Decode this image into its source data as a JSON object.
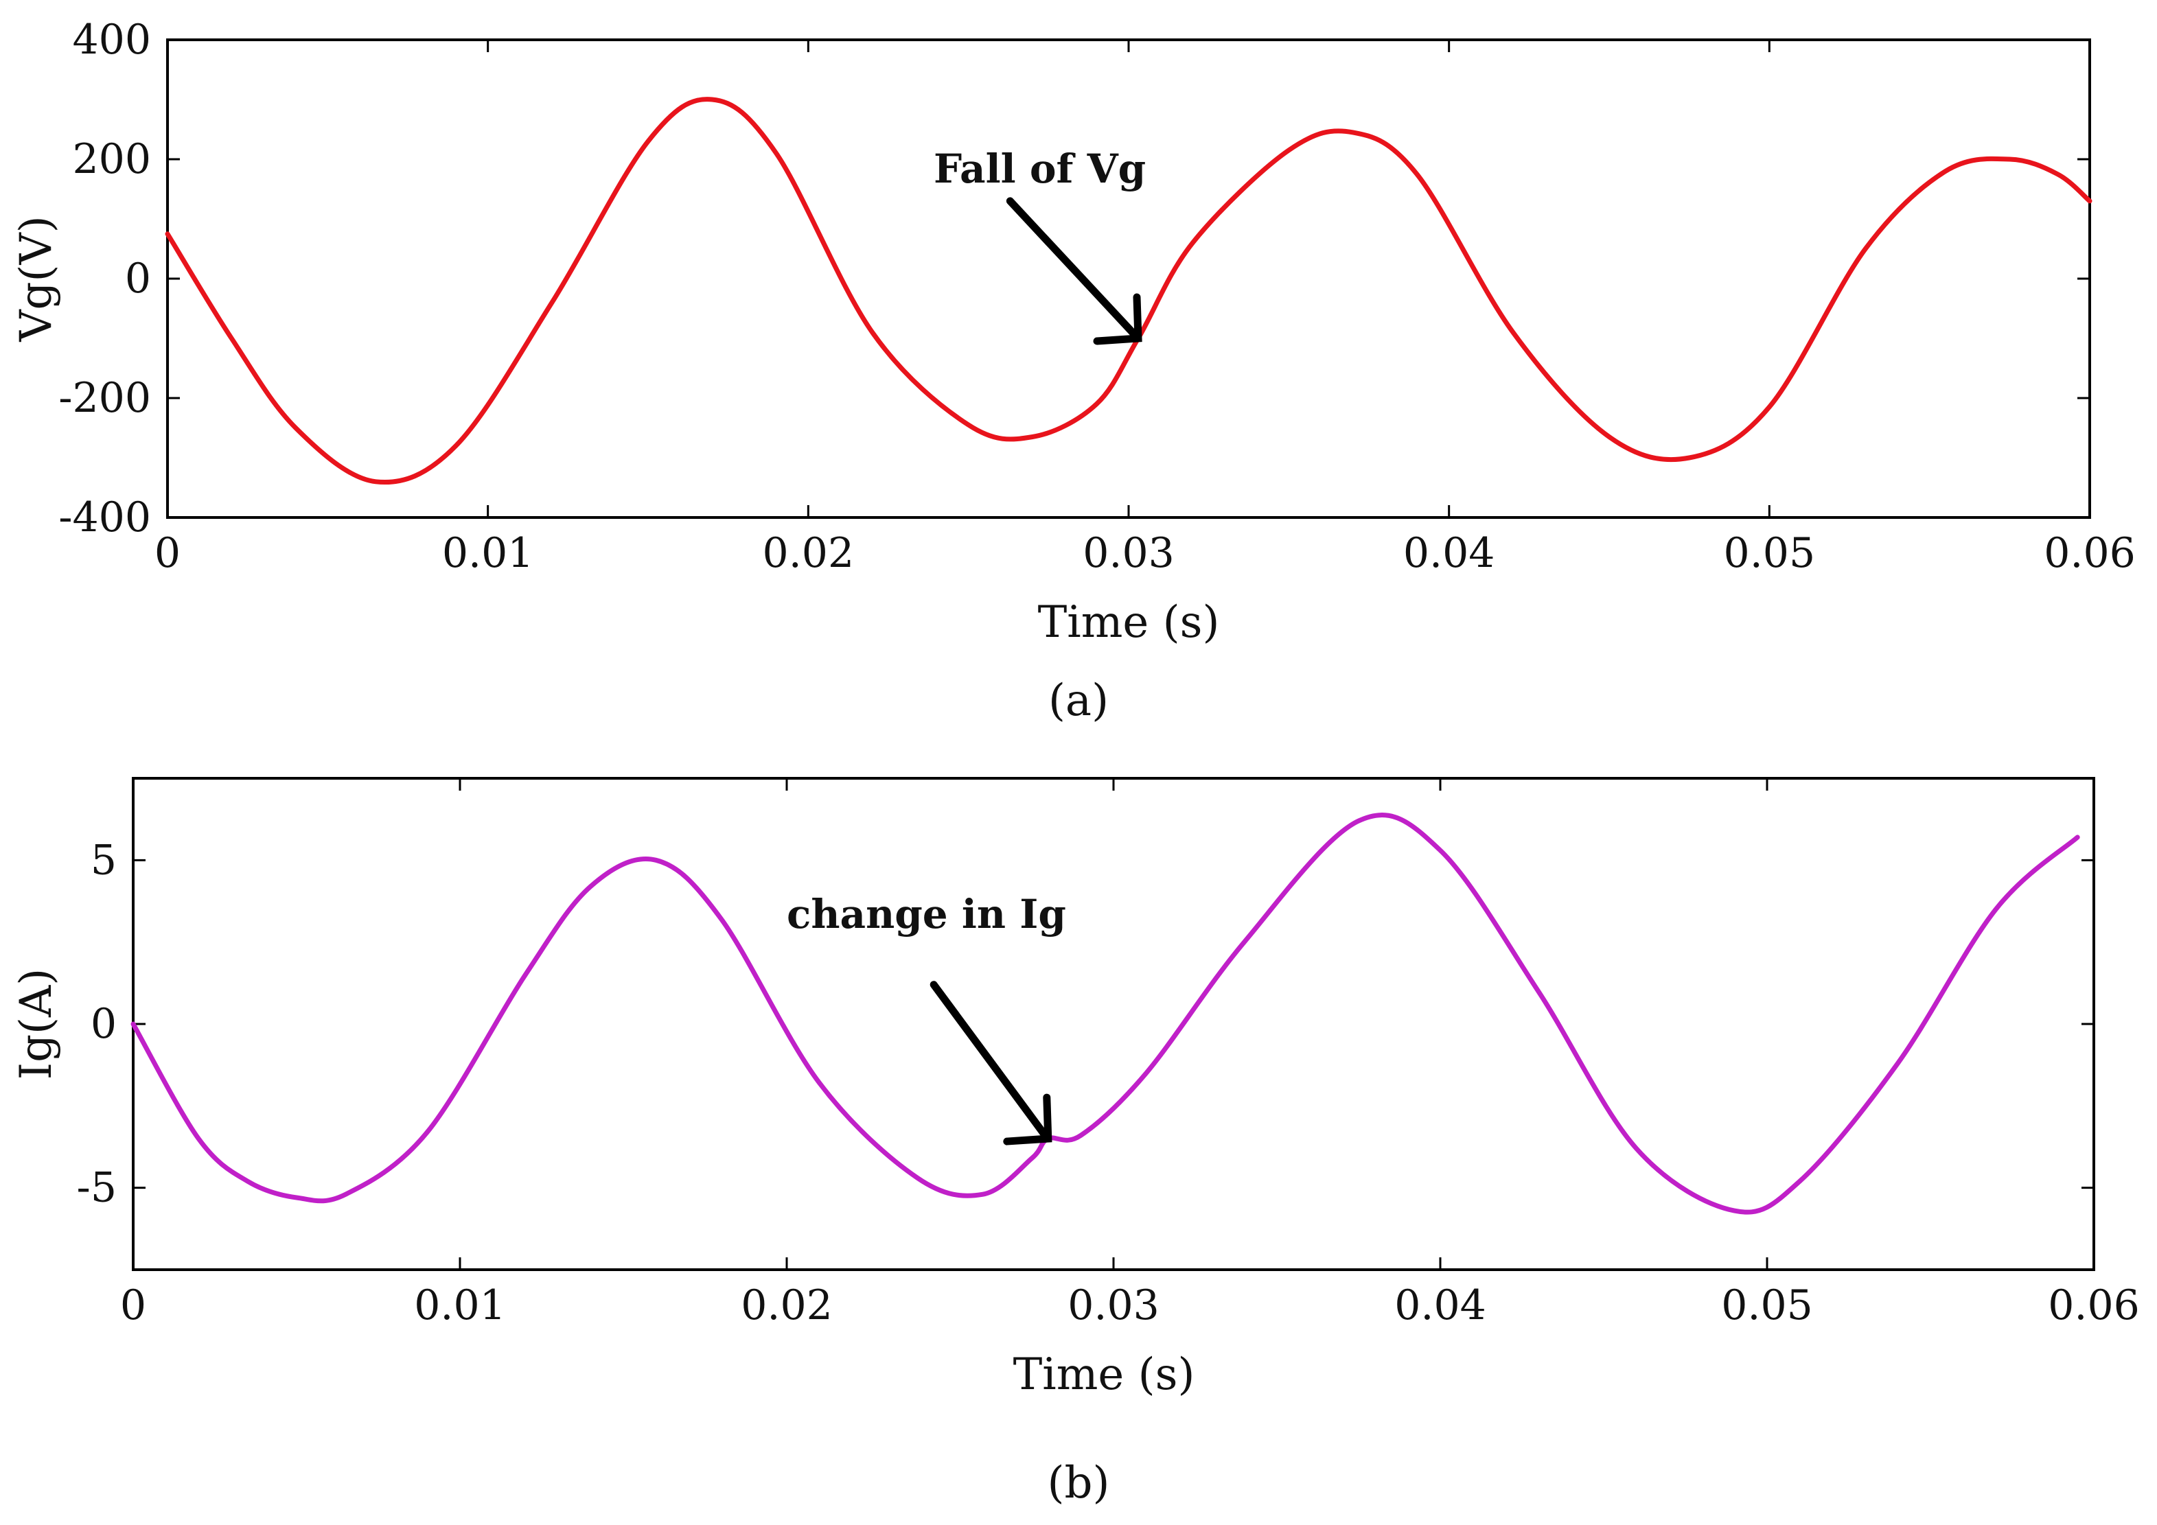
{
  "figure": {
    "panel_labels": [
      "(a)",
      "(b)"
    ]
  },
  "chart_data": [
    {
      "id": "a",
      "type": "line",
      "panel_label": "(a)",
      "xlabel": "Time (s)",
      "ylabel": "Vg(V)",
      "xlim": [
        0,
        0.06
      ],
      "ylim": [
        -400,
        400
      ],
      "xticks": [
        0,
        0.01,
        0.02,
        0.03,
        0.04,
        0.05,
        0.06
      ],
      "xtick_labels": [
        "0",
        "0.01",
        "0.02",
        "0.03",
        "0.04",
        "0.05",
        "0.06"
      ],
      "yticks": [
        -400,
        -200,
        0,
        200,
        400
      ],
      "ytick_labels": [
        "-400",
        "-200",
        "0",
        "200",
        "400"
      ],
      "color": "#e8141c",
      "series": [
        {
          "name": "Vg",
          "x": [
            0,
            0.002,
            0.004,
            0.0065,
            0.009,
            0.012,
            0.015,
            0.017,
            0.019,
            0.022,
            0.025,
            0.027,
            0.029,
            0.0303,
            0.032,
            0.035,
            0.037,
            0.039,
            0.042,
            0.045,
            0.0475,
            0.05,
            0.053,
            0.0555,
            0.0575,
            0.059,
            0.06
          ],
          "y": [
            75,
            -100,
            -250,
            -340,
            -280,
            -40,
            230,
            300,
            210,
            -90,
            -245,
            -265,
            -210,
            -100,
            60,
            215,
            245,
            175,
            -90,
            -265,
            -300,
            -215,
            50,
            180,
            200,
            175,
            130
          ]
        }
      ],
      "annotation": {
        "text": "Fall of Vg",
        "target": [
          0.0303,
          -100
        ],
        "arrow_from": [
          0.0263,
          130
        ]
      }
    },
    {
      "id": "b",
      "type": "line",
      "panel_label": "(b)",
      "xlabel": "Time (s)",
      "ylabel": "Ig(A)",
      "xlim": [
        0,
        0.06
      ],
      "ylim": [
        -7.5,
        7.5
      ],
      "xticks": [
        0,
        0.01,
        0.02,
        0.03,
        0.04,
        0.05,
        0.06
      ],
      "xtick_labels": [
        "0",
        "0.01",
        "0.02",
        "0.03",
        "0.04",
        "0.05",
        "0.06"
      ],
      "yticks": [
        -5,
        0,
        5
      ],
      "ytick_labels": [
        "-5",
        "0",
        "5"
      ],
      "color": "#c020c8",
      "series": [
        {
          "name": "Ig",
          "x": [
            0,
            0.002,
            0.0035,
            0.005,
            0.0065,
            0.009,
            0.012,
            0.014,
            0.016,
            0.018,
            0.021,
            0.024,
            0.026,
            0.0275,
            0.028,
            0.029,
            0.031,
            0.034,
            0.0375,
            0.04,
            0.043,
            0.046,
            0.049,
            0.051,
            0.054,
            0.057,
            0.0595
          ],
          "y": [
            0,
            -3.5,
            -4.8,
            -5.3,
            -5.2,
            -3.3,
            1.5,
            4.2,
            5.0,
            3.2,
            -1.8,
            -4.7,
            -5.2,
            -4.1,
            -3.5,
            -3.4,
            -1.5,
            2.5,
            6.2,
            5.3,
            1.0,
            -3.8,
            -5.7,
            -4.8,
            -1.2,
            3.5,
            5.7
          ]
        }
      ],
      "annotation": {
        "text": "change in Ig",
        "target": [
          0.028,
          -3.5
        ],
        "arrow_from": [
          0.0245,
          1.2
        ]
      }
    }
  ]
}
